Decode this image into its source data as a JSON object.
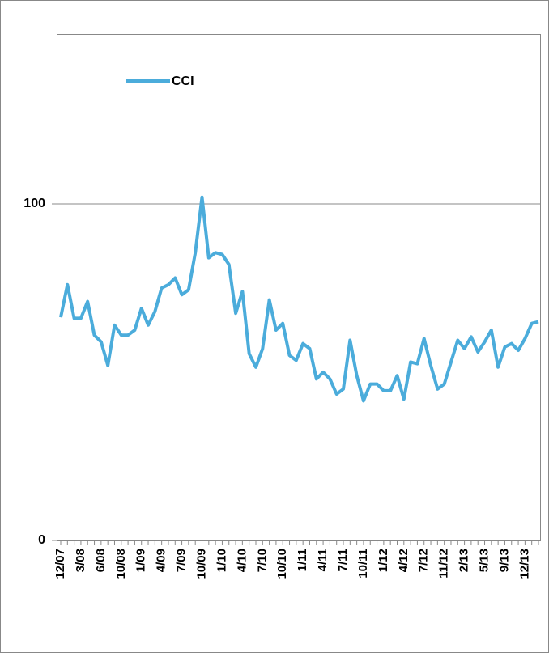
{
  "chart_data": {
    "type": "line",
    "categories": [
      "12/07",
      null,
      null,
      "3/08",
      null,
      null,
      "6/08",
      null,
      null,
      "10/08",
      null,
      null,
      "1/09",
      null,
      null,
      "4/09",
      null,
      null,
      "7/09",
      null,
      null,
      "10/09",
      null,
      null,
      "1/10",
      null,
      null,
      "4/10",
      null,
      null,
      "7/10",
      null,
      null,
      "10/10",
      null,
      null,
      "1/11",
      null,
      null,
      "4/11",
      null,
      null,
      "7/11",
      null,
      null,
      "10/11",
      null,
      null,
      "1/12",
      null,
      null,
      "4/12",
      null,
      null,
      "7/12",
      null,
      null,
      "11/12",
      null,
      null,
      "2/13",
      null,
      null,
      "5/13",
      null,
      null,
      "9/13",
      null,
      null,
      "12/13",
      null,
      null
    ],
    "series": [
      {
        "name": "CCI",
        "color": "#4bacdb",
        "values": [
          66.3,
          76,
          66,
          66,
          71,
          61,
          59,
          52,
          64,
          61,
          61,
          62.5,
          69,
          64,
          68,
          75,
          76,
          78,
          73,
          74.5,
          85.5,
          102,
          84,
          85.5,
          85,
          82,
          67.5,
          74,
          55.5,
          51.5,
          57,
          71.5,
          62.5,
          64.5,
          55,
          53.5,
          58.5,
          57,
          48,
          50,
          48,
          43.5,
          45,
          59.5,
          49,
          41.5,
          46.5,
          46.5,
          44.5,
          44.5,
          49,
          42,
          53,
          52.5,
          60,
          52,
          45,
          46.5,
          53,
          59.5,
          57,
          60.5,
          56,
          59,
          62.5,
          51.5,
          57.5,
          58.5,
          56.5,
          60,
          64.5,
          65
        ]
      }
    ],
    "ylim": [
      0,
      150
    ],
    "yticks": [
      0,
      100
    ],
    "grid": true,
    "legend": "top-left"
  }
}
